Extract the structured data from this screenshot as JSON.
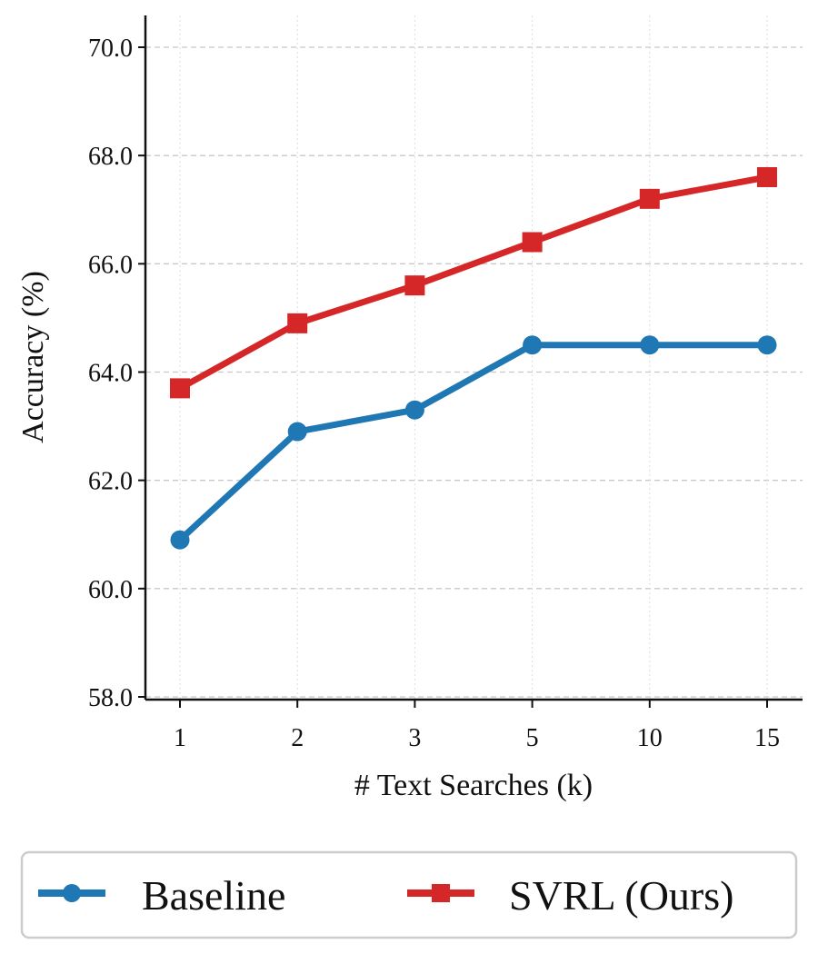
{
  "chart_data": {
    "type": "line",
    "title": "",
    "xlabel": "# Text Searches (k)",
    "ylabel": "Accuracy (%)",
    "categories": [
      "1",
      "2",
      "3",
      "5",
      "10",
      "15"
    ],
    "ylim": [
      58.0,
      70.6
    ],
    "yticks": [
      "58.0",
      "60.0",
      "62.0",
      "64.0",
      "66.0",
      "68.0",
      "70.0"
    ],
    "grid": true,
    "legend_position": "bottom",
    "series": [
      {
        "name": "Baseline",
        "color": "#1f77b4",
        "marker": "circle",
        "values": [
          60.9,
          62.9,
          63.3,
          64.5,
          64.5,
          64.5
        ]
      },
      {
        "name": "SVRL (Ours)",
        "color": "#d62728",
        "marker": "square",
        "values": [
          63.7,
          64.9,
          65.6,
          66.4,
          67.2,
          67.6
        ]
      }
    ]
  }
}
